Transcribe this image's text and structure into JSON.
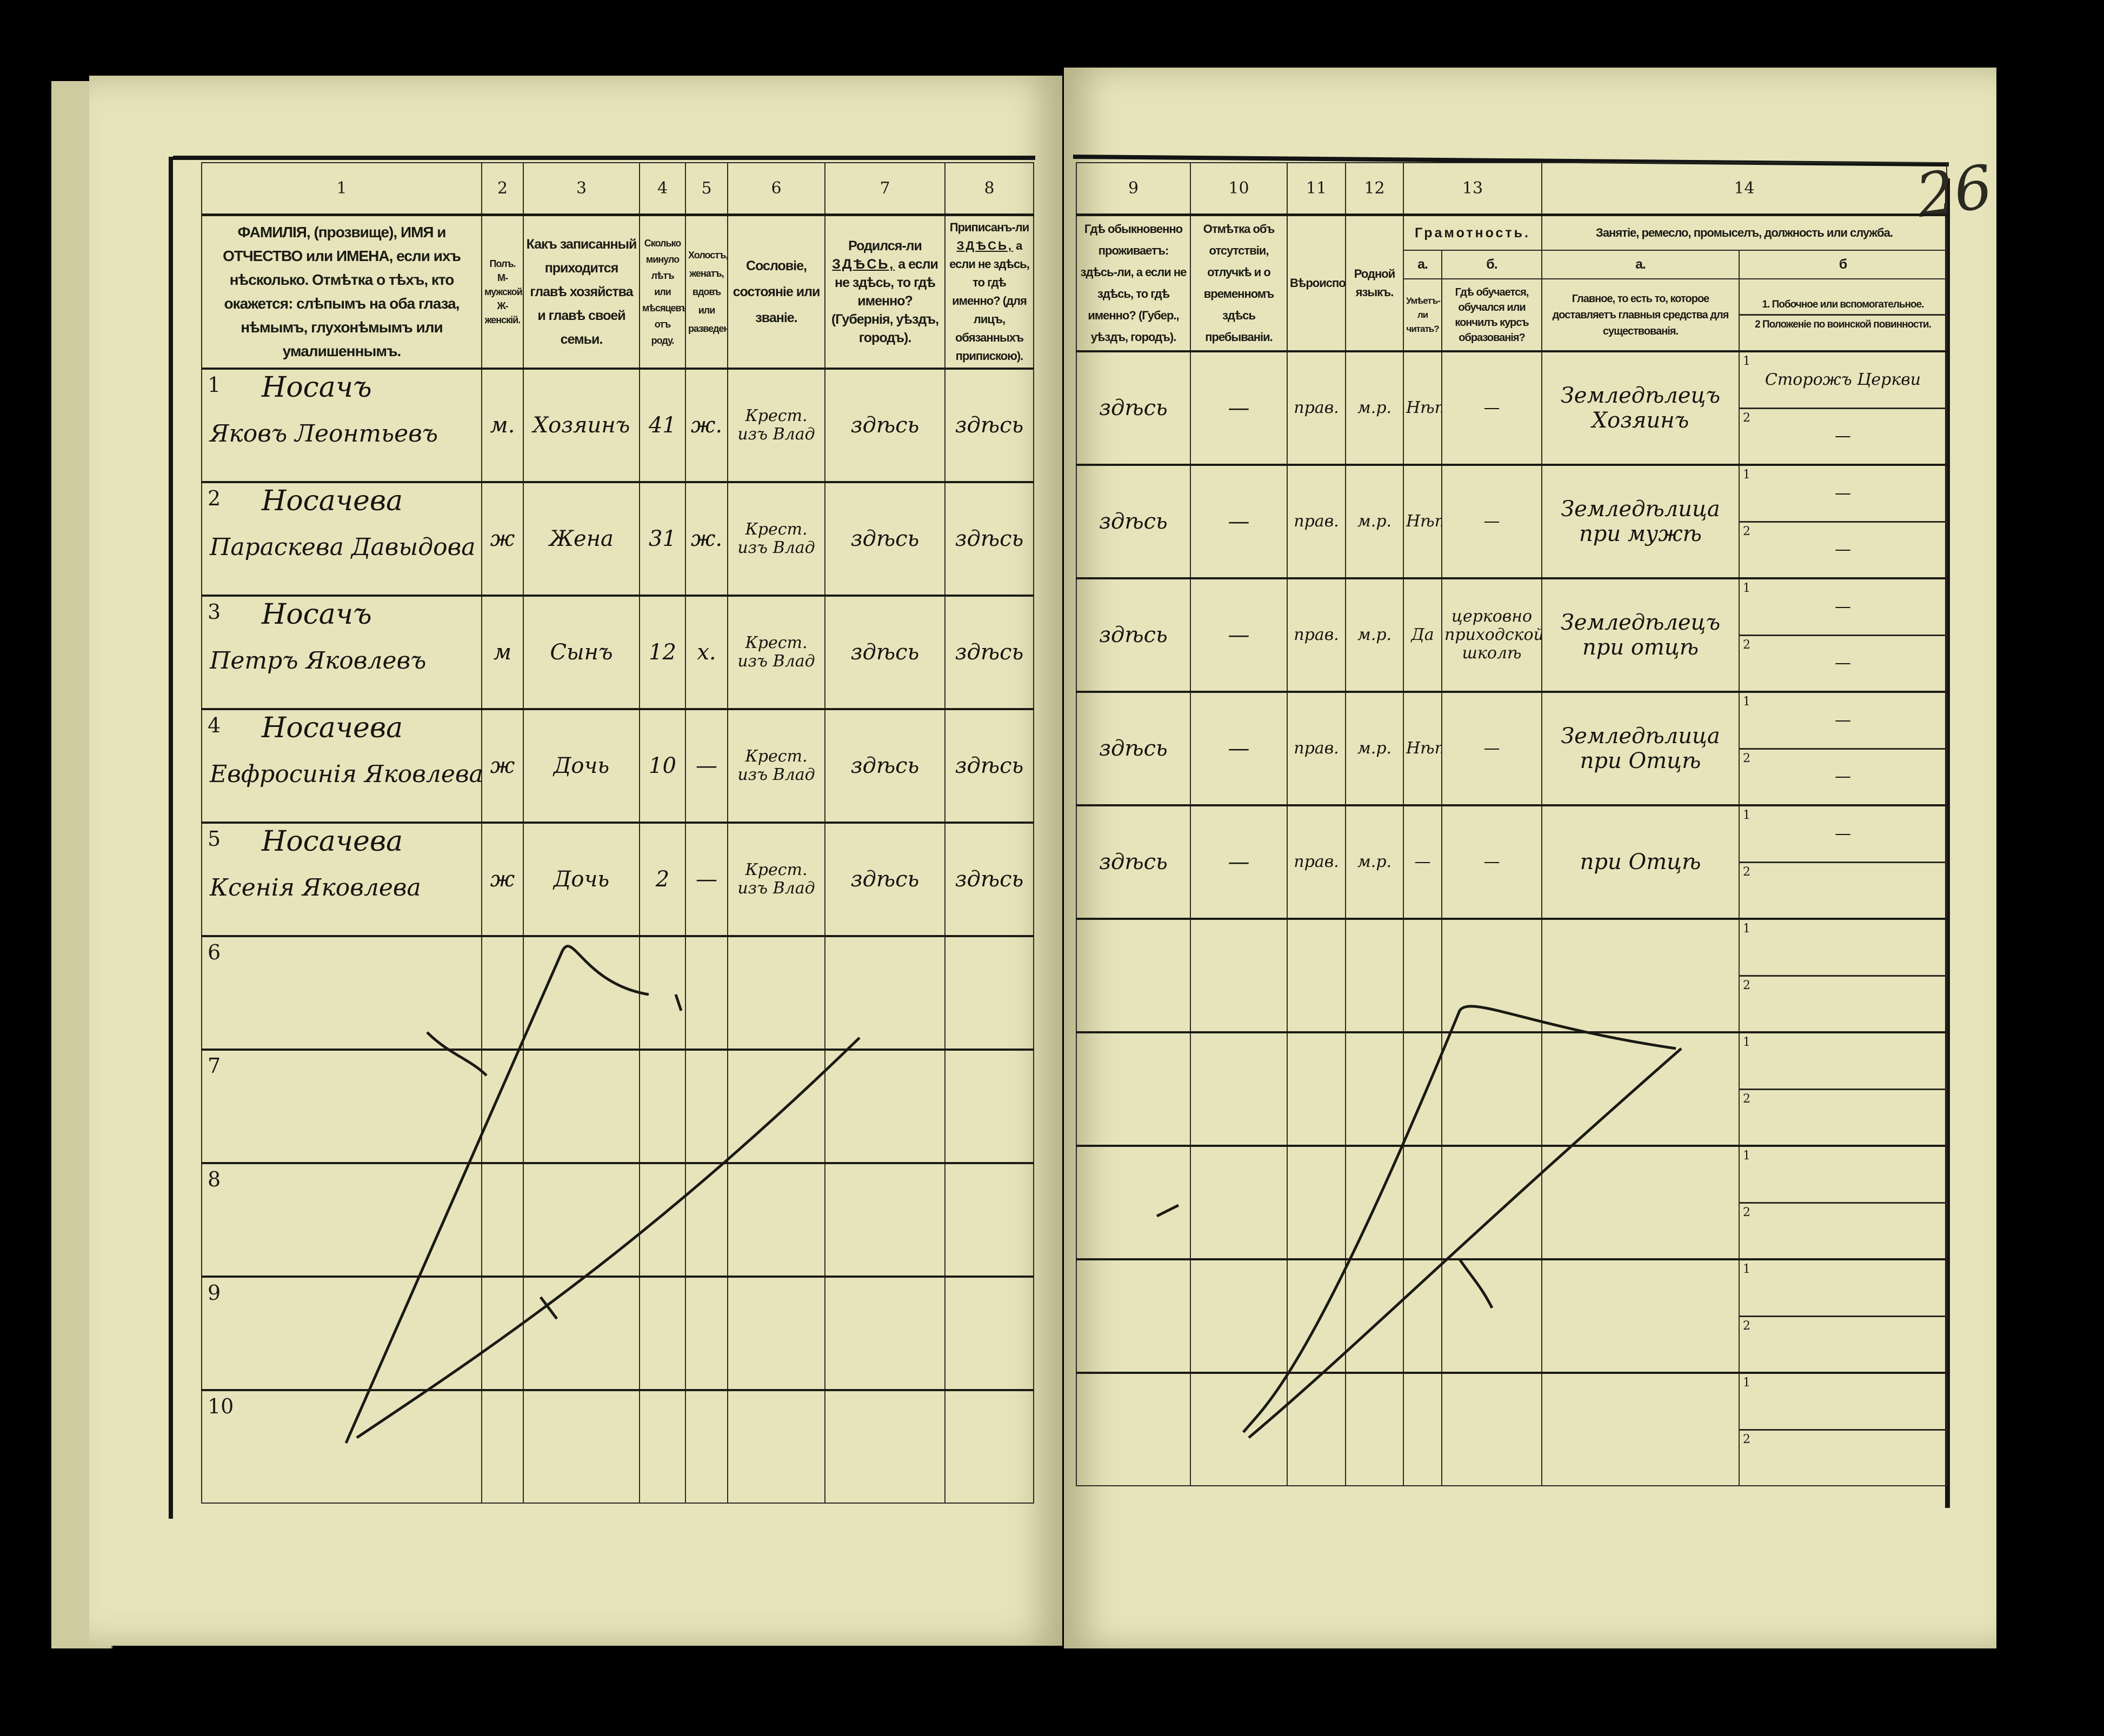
{
  "page_number": "26",
  "left_header": {
    "col_numbers": [
      "1",
      "2",
      "3",
      "4",
      "5",
      "6",
      "7",
      "8"
    ],
    "col1": "ФАМИЛІЯ, (прозвище), ИМЯ и ОТЧЕСТВО или ИМЕНА, если ихъ нѣсколько. Отмѣтка о тѣхъ, кто окажется: слѣпымъ на оба глаза, нѣмымъ, глухонѣмымъ или умалишеннымъ.",
    "col2": "Полъ. М-мужской. Ж-женскій.",
    "col3": "Какъ записанный приходится главѣ хозяйства и главѣ своей семьи.",
    "col4": "Сколько минуло лѣтъ или мѣсяцевъ отъ роду.",
    "col5": "Холостъ, женатъ, вдовъ или разведенъ.",
    "col6": "Сословіе, состояніе или званіе.",
    "col7_a": "Родился-ли",
    "col7_here": "ЗДѢСЬ,",
    "col7_b": "а если не здѣсь, то гдѣ именно? (Губернія, уѣздъ, городъ).",
    "col8_a": "Приписанъ-ли",
    "col8_here": "ЗДѢСЬ,",
    "col8_b": "а если не здѣсь, то гдѣ именно? (для лицъ, обязанныхъ припискою)."
  },
  "right_header": {
    "col_numbers": [
      "9",
      "10",
      "11",
      "12",
      "13",
      "14"
    ],
    "col9": "Гдѣ обыкновенно проживаетъ: здѣсь-ли, а если не здѣсь, то гдѣ именно? (Губер., уѣздъ, городъ).",
    "col10": "Отмѣтка объ отсутствіи, отлучкѣ и о временномъ здѣсь пребываніи.",
    "col11": "Вѣроисповѣданіе.",
    "col12": "Родной языкъ.",
    "col13": "Грамотность.",
    "col13a_letter": "а.",
    "col13b_letter": "б.",
    "col13a": "Умѣетъ-ли читать?",
    "col13b": "Гдѣ обучается, обучался или кончилъ курсъ образованія?",
    "col14": "Занятіе, ремесло, промыселъ, должность или служба.",
    "col14a_letter": "а.",
    "col14b_letter": "б",
    "col14a": "Главное, то есть то, которое доставляетъ главныя средства для существованія.",
    "col14b_1": "1. Побочное или вспомогательное.",
    "col14b_2": "2 Положеніе по воинской повинности."
  },
  "sub_labels": [
    "1",
    "2"
  ],
  "rows": [
    {
      "no": "1",
      "surname": "Носачъ",
      "given": "Яковъ Леонтьевъ",
      "sex": "м.",
      "relation": "Хозяинъ",
      "age": "41",
      "marital": "ж.",
      "estate": "Крест. изъ Влад",
      "born": "здѣсь",
      "registered": "здѣсь",
      "residence": "здѣсь",
      "absence": "—",
      "religion": "прав.",
      "language": "м.р.",
      "literate": "Нѣтъ",
      "education": "—",
      "occupation": "Земледѣлецъ Хозяинъ",
      "secondary": "Сторожъ Церкви",
      "military": "—"
    },
    {
      "no": "2",
      "surname": "Носачева",
      "given": "Параскева Давыдова",
      "sex": "ж",
      "relation": "Жена",
      "age": "31",
      "marital": "ж.",
      "estate": "Крест. изъ Влад",
      "born": "здѣсь",
      "registered": "здѣсь",
      "residence": "здѣсь",
      "absence": "—",
      "religion": "прав.",
      "language": "м.р.",
      "literate": "Нѣтъ",
      "education": "—",
      "occupation": "Земледѣлица при мужѣ",
      "secondary": "—",
      "military": "—"
    },
    {
      "no": "3",
      "surname": "Носачъ",
      "given": "Петръ Яковлевъ",
      "sex": "м",
      "relation": "Сынъ",
      "age": "12",
      "marital": "х.",
      "estate": "Крест. изъ Влад",
      "born": "здѣсь",
      "registered": "здѣсь",
      "residence": "здѣсь",
      "absence": "—",
      "religion": "прав.",
      "language": "м.р.",
      "literate": "Да",
      "education": "церковно приходской школѣ",
      "occupation": "Земледѣлецъ при отцѣ",
      "secondary": "—",
      "military": "—"
    },
    {
      "no": "4",
      "surname": "Носачева",
      "given": "Евфросинія Яковлева",
      "sex": "ж",
      "relation": "Дочь",
      "age": "10",
      "marital": "—",
      "estate": "Крест. изъ Влад",
      "born": "здѣсь",
      "registered": "здѣсь",
      "residence": "здѣсь",
      "absence": "—",
      "religion": "прав.",
      "language": "м.р.",
      "literate": "Нѣтъ",
      "education": "—",
      "occupation": "Земледѣлица при Отцѣ",
      "secondary": "—",
      "military": "—"
    },
    {
      "no": "5",
      "surname": "Носачева",
      "given": "Ксенія Яковлева",
      "sex": "ж",
      "relation": "Дочь",
      "age": "2",
      "marital": "—",
      "estate": "Крест. изъ Влад",
      "born": "здѣсь",
      "registered": "здѣсь",
      "residence": "здѣсь",
      "absence": "—",
      "religion": "прав.",
      "language": "м.р.",
      "literate": "—",
      "education": "—",
      "occupation": "при Отцѣ",
      "secondary": "—",
      "military": ""
    },
    {
      "no": "6"
    },
    {
      "no": "7"
    },
    {
      "no": "8"
    },
    {
      "no": "9"
    },
    {
      "no": "10"
    }
  ]
}
